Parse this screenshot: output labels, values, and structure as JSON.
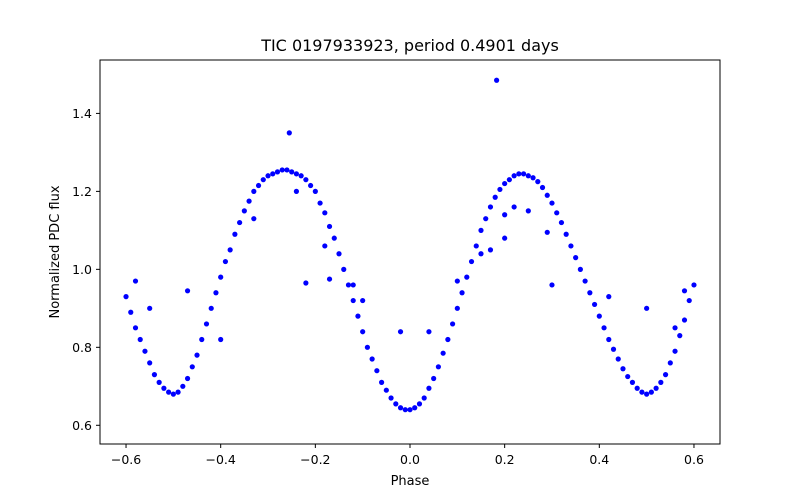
{
  "chart_data": {
    "type": "scatter",
    "title": "TIC 0197933923, period 0.4901 days",
    "xlabel": "Phase",
    "ylabel": "Normalized PDC flux",
    "xlim": [
      -0.655,
      0.655
    ],
    "ylim": [
      0.552,
      1.537
    ],
    "xticks": [
      -0.6,
      -0.4,
      -0.2,
      0.0,
      0.2,
      0.4,
      0.6
    ],
    "xtick_labels": [
      "−0.6",
      "−0.4",
      "−0.2",
      "0.0",
      "0.2",
      "0.4",
      "0.6"
    ],
    "yticks": [
      0.6,
      0.8,
      1.0,
      1.2,
      1.4
    ],
    "ytick_labels": [
      "0.6",
      "0.8",
      "1.0",
      "1.2",
      "1.4"
    ],
    "grid": false,
    "legend": "none",
    "marker_color": "#0000ff",
    "series": [
      {
        "values": [
          [
            -0.6,
            0.93
          ],
          [
            -0.59,
            0.89
          ],
          [
            -0.58,
            0.85
          ],
          [
            -0.57,
            0.82
          ],
          [
            -0.56,
            0.79
          ],
          [
            -0.55,
            0.76
          ],
          [
            -0.54,
            0.73
          ],
          [
            -0.53,
            0.71
          ],
          [
            -0.52,
            0.695
          ],
          [
            -0.51,
            0.685
          ],
          [
            -0.5,
            0.68
          ],
          [
            -0.49,
            0.685
          ],
          [
            -0.48,
            0.7
          ],
          [
            -0.47,
            0.72
          ],
          [
            -0.46,
            0.75
          ],
          [
            -0.45,
            0.78
          ],
          [
            -0.44,
            0.82
          ],
          [
            -0.43,
            0.86
          ],
          [
            -0.42,
            0.9
          ],
          [
            -0.41,
            0.94
          ],
          [
            -0.4,
            0.98
          ],
          [
            -0.39,
            1.02
          ],
          [
            -0.38,
            1.05
          ],
          [
            -0.37,
            1.09
          ],
          [
            -0.36,
            1.12
          ],
          [
            -0.35,
            1.15
          ],
          [
            -0.34,
            1.175
          ],
          [
            -0.33,
            1.2
          ],
          [
            -0.32,
            1.215
          ],
          [
            -0.31,
            1.23
          ],
          [
            -0.3,
            1.24
          ],
          [
            -0.29,
            1.245
          ],
          [
            -0.28,
            1.25
          ],
          [
            -0.27,
            1.255
          ],
          [
            -0.26,
            1.255
          ],
          [
            -0.25,
            1.25
          ],
          [
            -0.24,
            1.245
          ],
          [
            -0.23,
            1.24
          ],
          [
            -0.22,
            1.23
          ],
          [
            -0.21,
            1.215
          ],
          [
            -0.2,
            1.2
          ],
          [
            -0.19,
            1.17
          ],
          [
            -0.18,
            1.145
          ],
          [
            -0.17,
            1.11
          ],
          [
            -0.16,
            1.08
          ],
          [
            -0.15,
            1.04
          ],
          [
            -0.14,
            1.0
          ],
          [
            -0.13,
            0.96
          ],
          [
            -0.12,
            0.92
          ],
          [
            -0.11,
            0.88
          ],
          [
            -0.1,
            0.84
          ],
          [
            -0.09,
            0.8
          ],
          [
            -0.08,
            0.77
          ],
          [
            -0.07,
            0.74
          ],
          [
            -0.06,
            0.71
          ],
          [
            -0.05,
            0.69
          ],
          [
            -0.04,
            0.67
          ],
          [
            -0.03,
            0.655
          ],
          [
            -0.02,
            0.645
          ],
          [
            -0.01,
            0.64
          ],
          [
            0.0,
            0.64
          ],
          [
            0.01,
            0.645
          ],
          [
            0.02,
            0.655
          ],
          [
            0.03,
            0.67
          ],
          [
            0.04,
            0.695
          ],
          [
            0.05,
            0.72
          ],
          [
            0.06,
            0.75
          ],
          [
            0.07,
            0.785
          ],
          [
            0.08,
            0.82
          ],
          [
            0.09,
            0.86
          ],
          [
            0.1,
            0.9
          ],
          [
            0.11,
            0.94
          ],
          [
            0.12,
            0.98
          ],
          [
            0.13,
            1.02
          ],
          [
            0.14,
            1.06
          ],
          [
            0.15,
            1.1
          ],
          [
            0.16,
            1.13
          ],
          [
            0.17,
            1.16
          ],
          [
            0.18,
            1.185
          ],
          [
            0.19,
            1.205
          ],
          [
            0.2,
            1.22
          ],
          [
            0.21,
            1.23
          ],
          [
            0.22,
            1.24
          ],
          [
            0.23,
            1.245
          ],
          [
            0.24,
            1.245
          ],
          [
            0.25,
            1.24
          ],
          [
            0.26,
            1.235
          ],
          [
            0.27,
            1.225
          ],
          [
            0.28,
            1.21
          ],
          [
            0.29,
            1.19
          ],
          [
            0.3,
            1.17
          ],
          [
            0.31,
            1.145
          ],
          [
            0.32,
            1.12
          ],
          [
            0.33,
            1.09
          ],
          [
            0.34,
            1.06
          ],
          [
            0.35,
            1.03
          ],
          [
            0.36,
            1.0
          ],
          [
            0.37,
            0.97
          ],
          [
            0.38,
            0.94
          ],
          [
            0.39,
            0.91
          ],
          [
            0.4,
            0.88
          ],
          [
            0.41,
            0.85
          ],
          [
            0.42,
            0.82
          ],
          [
            0.43,
            0.795
          ],
          [
            0.44,
            0.77
          ],
          [
            0.45,
            0.745
          ],
          [
            0.46,
            0.725
          ],
          [
            0.47,
            0.71
          ],
          [
            0.48,
            0.695
          ],
          [
            0.49,
            0.685
          ],
          [
            0.5,
            0.68
          ],
          [
            0.51,
            0.685
          ],
          [
            0.52,
            0.695
          ],
          [
            0.53,
            0.71
          ],
          [
            0.54,
            0.73
          ],
          [
            0.55,
            0.76
          ],
          [
            0.56,
            0.79
          ],
          [
            0.57,
            0.83
          ],
          [
            0.58,
            0.87
          ],
          [
            0.59,
            0.92
          ],
          [
            0.6,
            0.96
          ],
          [
            0.183,
            1.485
          ],
          [
            -0.255,
            1.35
          ],
          [
            -0.22,
            0.965
          ],
          [
            0.3,
            0.96
          ],
          [
            -0.55,
            0.9
          ],
          [
            -0.47,
            0.945
          ],
          [
            0.5,
            0.9
          ],
          [
            0.58,
            0.945
          ],
          [
            0.15,
            1.04
          ],
          [
            0.17,
            1.05
          ],
          [
            0.2,
            1.08
          ],
          [
            0.29,
            1.095
          ],
          [
            0.25,
            1.15
          ],
          [
            -0.17,
            0.975
          ],
          [
            -0.18,
            1.06
          ],
          [
            -0.24,
            1.2
          ],
          [
            0.2,
            1.14
          ],
          [
            0.22,
            1.16
          ],
          [
            -0.58,
            0.97
          ],
          [
            0.56,
            0.85
          ],
          [
            -0.02,
            0.84
          ],
          [
            0.04,
            0.84
          ],
          [
            -0.1,
            0.92
          ],
          [
            0.1,
            0.97
          ],
          [
            -0.4,
            0.82
          ],
          [
            0.42,
            0.93
          ],
          [
            -0.12,
            0.96
          ],
          [
            -0.33,
            1.13
          ]
        ]
      }
    ]
  }
}
